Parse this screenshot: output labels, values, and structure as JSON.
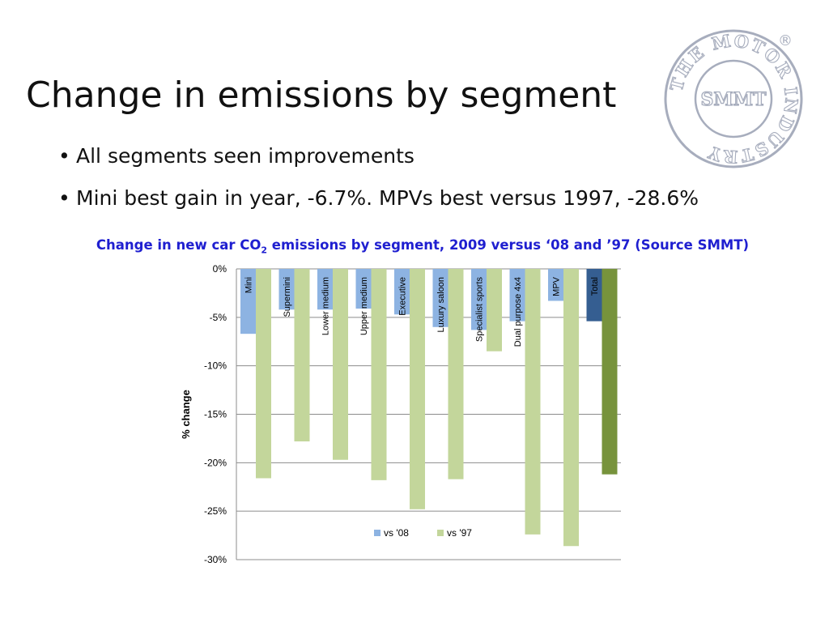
{
  "slide": {
    "title": "Change in emissions by segment",
    "bullets": [
      "All segments seen improvements",
      "Mini best gain in year, -6.7%. MPVs best versus 1997, -28.6%"
    ],
    "bullet_char": "•"
  },
  "logo": {
    "name": "SMMT",
    "ring_text": "THE MOTOR INDUSTRY",
    "mark": "®",
    "color": "#a7adbd"
  },
  "caption": {
    "before_sub": "Change in new car CO",
    "sub": "2",
    "after_sub": " emissions by segment, 2009 versus ‘08 and ’97 (Source SMMT)"
  },
  "chart_data": {
    "type": "bar",
    "ylabel": "% change",
    "ylim": [
      -30,
      0
    ],
    "yticks": [
      0,
      -5,
      -10,
      -15,
      -20,
      -25,
      -30
    ],
    "ytick_labels": [
      "0%",
      "-5%",
      "-10%",
      "-15%",
      "-20%",
      "-25%",
      "-30%"
    ],
    "categories": [
      "Mini",
      "Supermini",
      "Lower medium",
      "Upper medium",
      "Executive",
      "Luxury saloon",
      "Specialist sports",
      "Dual purpose 4x4",
      "MPV",
      "Total"
    ],
    "series": [
      {
        "name": "vs '08",
        "values": [
          -6.7,
          -4.2,
          -4.2,
          -4.1,
          -4.7,
          -6.0,
          -6.3,
          -5.4,
          -3.3,
          -5.4
        ],
        "color": "#8db3e2",
        "total_color": "#355e91"
      },
      {
        "name": "vs '97",
        "values": [
          -21.6,
          -17.8,
          -19.7,
          -21.8,
          -24.8,
          -21.7,
          -8.5,
          -27.4,
          -28.6,
          -21.2
        ],
        "color": "#c3d69b",
        "total_color": "#77933c"
      }
    ],
    "legend_position": "bottom-inside",
    "grid": true,
    "gridline_color": "#8c8c8c"
  }
}
